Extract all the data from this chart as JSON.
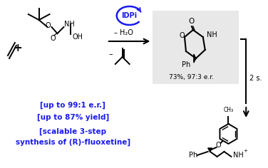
{
  "bg_color": "#ffffff",
  "box_color": "#e8e8e8",
  "blue": "#1a1aee",
  "black": "#000000",
  "line1": "[up to 99:1 e.r.]",
  "line2": "[up to 87% yield]",
  "line3": "[scalable 3-step",
  "line4": "synthesis of (R)-fluoxetine]",
  "yield_er": "73%, 97:3 e.r.",
  "steps": "2 s."
}
